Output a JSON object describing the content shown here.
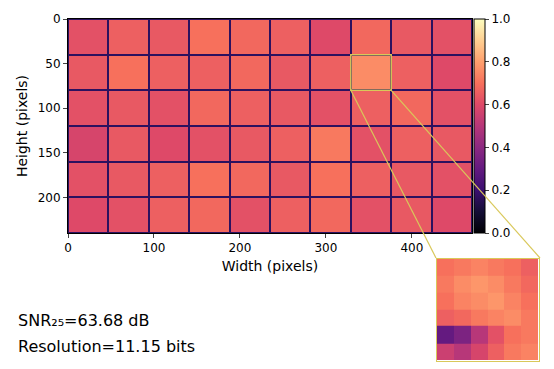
{
  "chart_data": [
    {
      "type": "heatmap",
      "xlabel": "Width (pixels)",
      "ylabel": "Height (pixels)",
      "x": [
        23.5,
        70.5,
        117.5,
        164.5,
        211.5,
        258.5,
        305.5,
        352.5,
        399.5,
        446.5
      ],
      "y": [
        20,
        60,
        100,
        140,
        180,
        220
      ],
      "z": [
        [
          0.62,
          0.66,
          0.64,
          0.7,
          0.68,
          0.66,
          0.6,
          0.68,
          0.64,
          0.62
        ],
        [
          0.64,
          0.7,
          0.66,
          0.66,
          0.68,
          0.64,
          0.66,
          0.76,
          0.66,
          0.6
        ],
        [
          0.62,
          0.64,
          0.62,
          0.68,
          0.66,
          0.64,
          0.62,
          0.66,
          0.68,
          0.62
        ],
        [
          0.58,
          0.64,
          0.6,
          0.62,
          0.64,
          0.66,
          0.72,
          0.62,
          0.66,
          0.64
        ],
        [
          0.62,
          0.64,
          0.66,
          0.7,
          0.68,
          0.64,
          0.7,
          0.66,
          0.64,
          0.62
        ],
        [
          0.6,
          0.62,
          0.66,
          0.68,
          0.62,
          0.66,
          0.68,
          0.62,
          0.64,
          0.6
        ]
      ],
      "xlim": [
        0,
        470
      ],
      "ylim": [
        240,
        0
      ],
      "xticks": [
        0,
        100,
        200,
        300,
        400
      ],
      "yticks": [
        0,
        50,
        100,
        150,
        200
      ],
      "grid": false,
      "colorbar": {
        "range": [
          0,
          1
        ],
        "ticks": [
          {
            "value": 0,
            "label": "0.0"
          },
          {
            "value": 0.2,
            "label": "0.2"
          },
          {
            "value": 0.4,
            "label": "0.4"
          },
          {
            "value": 0.6,
            "label": "0.6"
          },
          {
            "value": 0.8,
            "label": "0.8"
          },
          {
            "value": 1,
            "label": "1.0"
          }
        ]
      },
      "annotations": [
        "SNR₂₅=63.68 dB",
        "Resolution=11.15 bits"
      ]
    },
    {
      "type": "heatmap",
      "x": [
        333,
        341,
        349,
        356,
        364,
        372
      ],
      "y": [
        43,
        50,
        57,
        63,
        70,
        77
      ],
      "z": [
        [
          0.7,
          0.72,
          0.74,
          0.72,
          0.7,
          0.66
        ],
        [
          0.72,
          0.76,
          0.78,
          0.76,
          0.72,
          0.68
        ],
        [
          0.7,
          0.74,
          0.76,
          0.78,
          0.74,
          0.7
        ],
        [
          0.66,
          0.68,
          0.72,
          0.74,
          0.76,
          0.72
        ],
        [
          0.3,
          0.36,
          0.5,
          0.62,
          0.7,
          0.72
        ],
        [
          0.55,
          0.5,
          0.58,
          0.66,
          0.72,
          0.74
        ]
      ],
      "xlim": [
        329,
        376
      ],
      "ylim": [
        80,
        40
      ],
      "tick_labels": false
    }
  ]
}
